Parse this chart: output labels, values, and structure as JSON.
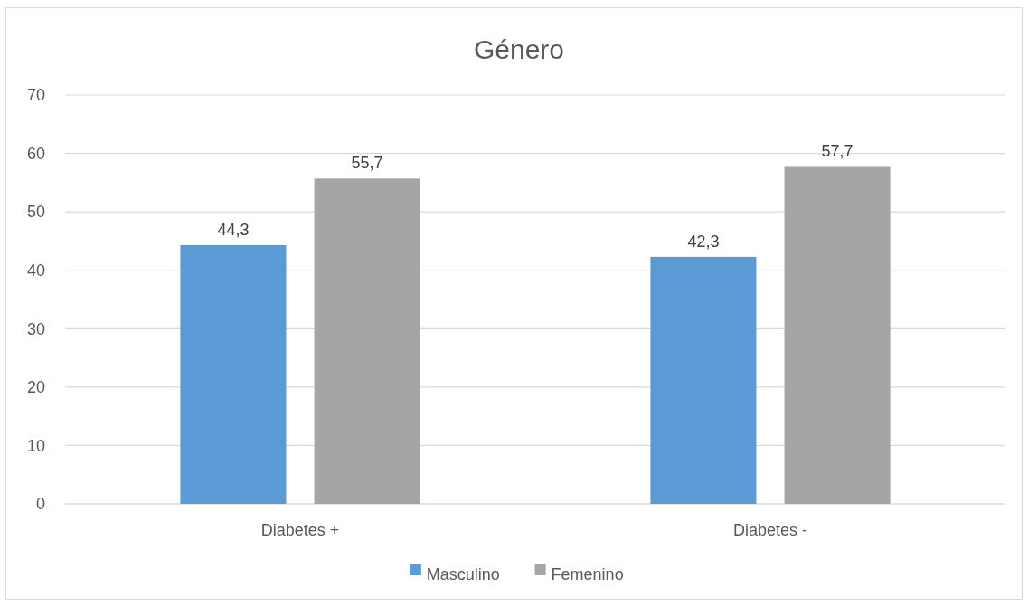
{
  "chart_data": {
    "type": "bar",
    "title": "Género",
    "categories": [
      "Diabetes +",
      "Diabetes -"
    ],
    "series": [
      {
        "name": "Masculino",
        "color": "#5b9bd5",
        "values": [
          44.3,
          42.3
        ],
        "value_labels": [
          "44,3",
          "42,3"
        ]
      },
      {
        "name": "Femenino",
        "color": "#a5a5a5",
        "values": [
          55.7,
          57.7
        ],
        "value_labels": [
          "55,7",
          "57,7"
        ]
      }
    ],
    "ylim": [
      0,
      70
    ],
    "yticks": [
      0,
      10,
      20,
      30,
      40,
      50,
      60,
      70
    ],
    "grid": "y",
    "legend": "bottom"
  }
}
